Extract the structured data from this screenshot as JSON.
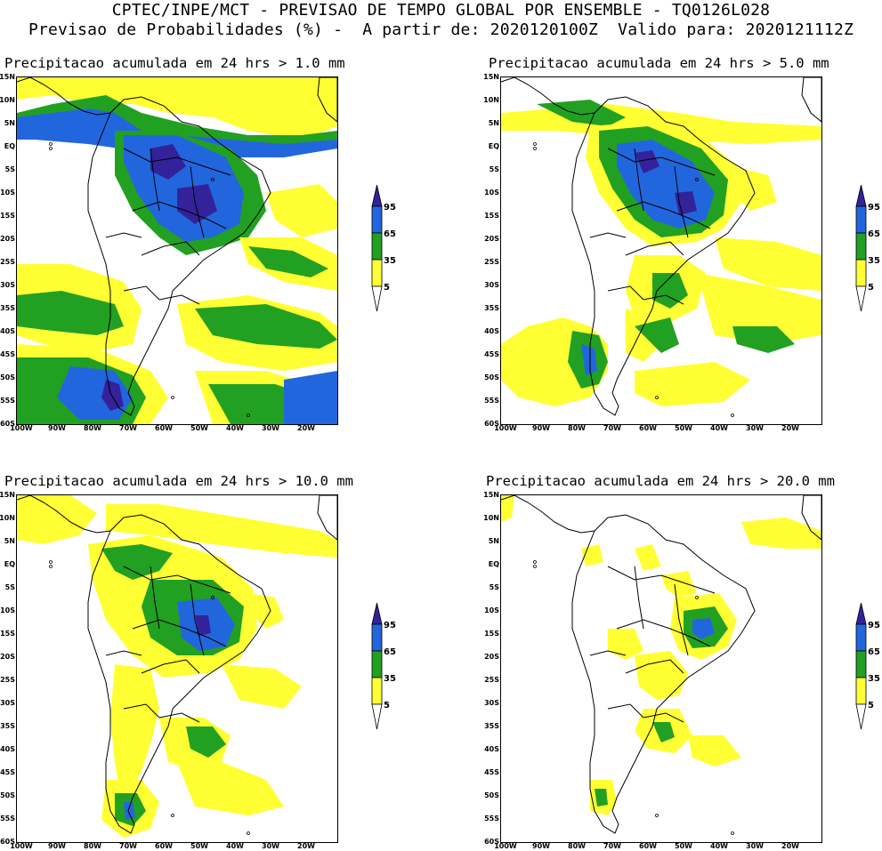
{
  "header": {
    "line1": "CPTEC/INPE/MCT - PREVISAO DE TEMPO GLOBAL POR ENSEMBLE - TQ0126L028",
    "line2": "Previsao de Probabilidades (%) -  A partir de: 2020120100Z  Valido para: 2020121112Z"
  },
  "colors": {
    "c5": "#ffff33",
    "c35": "#22a022",
    "c65": "#2266dd",
    "c95": "#332299",
    "land_line": "#000000"
  },
  "legend": {
    "levels": [
      "5",
      "35",
      "65",
      "95"
    ]
  },
  "axes": {
    "lat_ticks": [
      "15N",
      "10N",
      "5N",
      "EQ",
      "5S",
      "10S",
      "15S",
      "20S",
      "25S",
      "30S",
      "35S",
      "40S",
      "45S",
      "50S",
      "55S",
      "60S"
    ],
    "lon_ticks": [
      "100W",
      "90W",
      "80W",
      "70W",
      "60W",
      "50W",
      "40W",
      "30W",
      "20W"
    ]
  },
  "panels": [
    {
      "id": "p1",
      "title": "Precipitacao acumulada em 24 hrs > 1.0 mm"
    },
    {
      "id": "p2",
      "title": "Precipitacao acumulada em 24 hrs > 5.0 mm"
    },
    {
      "id": "p3",
      "title": "Precipitacao acumulada em 24 hrs > 10.0 mm"
    },
    {
      "id": "p4",
      "title": "Precipitacao acumulada em 24 hrs > 20.0 mm"
    }
  ]
}
